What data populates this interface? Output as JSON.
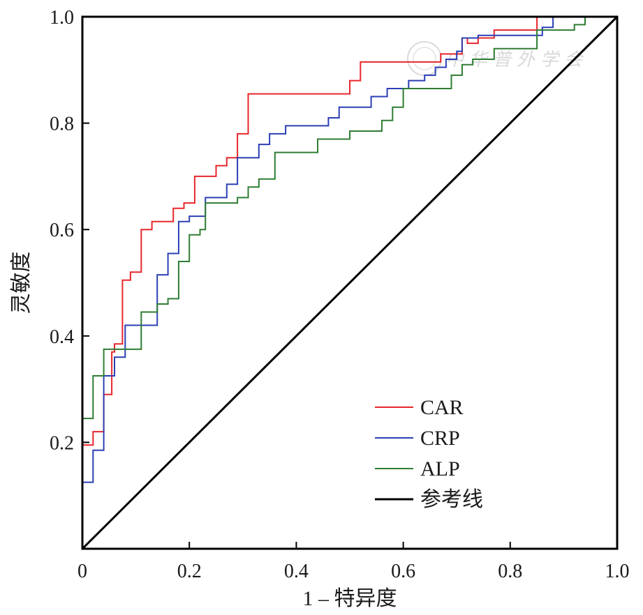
{
  "chart_data": {
    "type": "line",
    "xlabel": "1 – 特异度",
    "ylabel": "灵敏度",
    "xlim": [
      0,
      1
    ],
    "ylim": [
      0,
      1
    ],
    "x_ticks": [
      "0",
      "0.2",
      "0.4",
      "0.6",
      "0.8",
      "1.0"
    ],
    "x_tick_values": [
      0,
      0.2,
      0.4,
      0.6,
      0.8,
      1.0
    ],
    "y_ticks": [
      "0.2",
      "0.4",
      "0.6",
      "0.8",
      "1.0"
    ],
    "y_tick_values": [
      0.2,
      0.4,
      0.6,
      0.8,
      1.0
    ],
    "legend_position": "bottom-right",
    "watermark": "中华普外学会",
    "series": [
      {
        "name": "CAR",
        "color": "#e8262b",
        "points": [
          [
            0,
            0.195
          ],
          [
            0.02,
            0.195
          ],
          [
            0.02,
            0.22
          ],
          [
            0.04,
            0.22
          ],
          [
            0.04,
            0.29
          ],
          [
            0.055,
            0.29
          ],
          [
            0.055,
            0.37
          ],
          [
            0.06,
            0.37
          ],
          [
            0.06,
            0.385
          ],
          [
            0.075,
            0.385
          ],
          [
            0.075,
            0.505
          ],
          [
            0.09,
            0.505
          ],
          [
            0.09,
            0.52
          ],
          [
            0.11,
            0.52
          ],
          [
            0.11,
            0.6
          ],
          [
            0.13,
            0.6
          ],
          [
            0.13,
            0.615
          ],
          [
            0.17,
            0.615
          ],
          [
            0.17,
            0.64
          ],
          [
            0.19,
            0.64
          ],
          [
            0.19,
            0.65
          ],
          [
            0.21,
            0.65
          ],
          [
            0.21,
            0.7
          ],
          [
            0.25,
            0.7
          ],
          [
            0.25,
            0.72
          ],
          [
            0.27,
            0.72
          ],
          [
            0.27,
            0.735
          ],
          [
            0.29,
            0.735
          ],
          [
            0.29,
            0.78
          ],
          [
            0.31,
            0.78
          ],
          [
            0.31,
            0.855
          ],
          [
            0.5,
            0.855
          ],
          [
            0.5,
            0.88
          ],
          [
            0.52,
            0.88
          ],
          [
            0.52,
            0.915
          ],
          [
            0.67,
            0.915
          ],
          [
            0.67,
            0.93
          ],
          [
            0.71,
            0.93
          ],
          [
            0.71,
            0.96
          ],
          [
            0.72,
            0.96
          ],
          [
            0.72,
            0.95
          ],
          [
            0.74,
            0.95
          ],
          [
            0.74,
            0.96
          ],
          [
            0.77,
            0.96
          ],
          [
            0.77,
            0.975
          ],
          [
            0.85,
            0.975
          ],
          [
            0.85,
            1.0
          ],
          [
            1.0,
            1.0
          ]
        ]
      },
      {
        "name": "CRP",
        "color": "#2b3fb5",
        "points": [
          [
            0,
            0.125
          ],
          [
            0.02,
            0.125
          ],
          [
            0.02,
            0.185
          ],
          [
            0.04,
            0.185
          ],
          [
            0.04,
            0.325
          ],
          [
            0.06,
            0.325
          ],
          [
            0.06,
            0.36
          ],
          [
            0.08,
            0.36
          ],
          [
            0.08,
            0.42
          ],
          [
            0.14,
            0.42
          ],
          [
            0.14,
            0.515
          ],
          [
            0.16,
            0.515
          ],
          [
            0.16,
            0.555
          ],
          [
            0.18,
            0.555
          ],
          [
            0.18,
            0.615
          ],
          [
            0.2,
            0.615
          ],
          [
            0.2,
            0.625
          ],
          [
            0.23,
            0.625
          ],
          [
            0.23,
            0.66
          ],
          [
            0.27,
            0.66
          ],
          [
            0.27,
            0.685
          ],
          [
            0.29,
            0.685
          ],
          [
            0.29,
            0.735
          ],
          [
            0.33,
            0.735
          ],
          [
            0.33,
            0.76
          ],
          [
            0.35,
            0.76
          ],
          [
            0.35,
            0.78
          ],
          [
            0.38,
            0.78
          ],
          [
            0.38,
            0.795
          ],
          [
            0.46,
            0.795
          ],
          [
            0.46,
            0.81
          ],
          [
            0.48,
            0.81
          ],
          [
            0.48,
            0.83
          ],
          [
            0.54,
            0.83
          ],
          [
            0.54,
            0.85
          ],
          [
            0.57,
            0.85
          ],
          [
            0.57,
            0.865
          ],
          [
            0.61,
            0.865
          ],
          [
            0.61,
            0.88
          ],
          [
            0.64,
            0.88
          ],
          [
            0.64,
            0.89
          ],
          [
            0.66,
            0.89
          ],
          [
            0.66,
            0.905
          ],
          [
            0.68,
            0.905
          ],
          [
            0.68,
            0.92
          ],
          [
            0.7,
            0.92
          ],
          [
            0.7,
            0.935
          ],
          [
            0.71,
            0.935
          ],
          [
            0.71,
            0.96
          ],
          [
            0.74,
            0.96
          ],
          [
            0.74,
            0.965
          ],
          [
            0.86,
            0.965
          ],
          [
            0.86,
            0.98
          ],
          [
            0.88,
            0.98
          ],
          [
            0.88,
            1.0
          ],
          [
            1.0,
            1.0
          ]
        ]
      },
      {
        "name": "ALP",
        "color": "#2e7d32",
        "points": [
          [
            0,
            0.245
          ],
          [
            0.02,
            0.245
          ],
          [
            0.02,
            0.325
          ],
          [
            0.04,
            0.325
          ],
          [
            0.04,
            0.375
          ],
          [
            0.11,
            0.375
          ],
          [
            0.11,
            0.445
          ],
          [
            0.14,
            0.445
          ],
          [
            0.14,
            0.46
          ],
          [
            0.16,
            0.46
          ],
          [
            0.16,
            0.47
          ],
          [
            0.18,
            0.47
          ],
          [
            0.18,
            0.54
          ],
          [
            0.2,
            0.54
          ],
          [
            0.2,
            0.59
          ],
          [
            0.22,
            0.59
          ],
          [
            0.22,
            0.6
          ],
          [
            0.23,
            0.6
          ],
          [
            0.23,
            0.65
          ],
          [
            0.29,
            0.65
          ],
          [
            0.29,
            0.66
          ],
          [
            0.31,
            0.66
          ],
          [
            0.31,
            0.68
          ],
          [
            0.33,
            0.68
          ],
          [
            0.33,
            0.695
          ],
          [
            0.36,
            0.695
          ],
          [
            0.36,
            0.745
          ],
          [
            0.44,
            0.745
          ],
          [
            0.44,
            0.77
          ],
          [
            0.5,
            0.77
          ],
          [
            0.5,
            0.785
          ],
          [
            0.56,
            0.785
          ],
          [
            0.56,
            0.805
          ],
          [
            0.58,
            0.805
          ],
          [
            0.58,
            0.83
          ],
          [
            0.6,
            0.83
          ],
          [
            0.6,
            0.865
          ],
          [
            0.69,
            0.865
          ],
          [
            0.69,
            0.89
          ],
          [
            0.71,
            0.89
          ],
          [
            0.71,
            0.91
          ],
          [
            0.73,
            0.91
          ],
          [
            0.73,
            0.92
          ],
          [
            0.77,
            0.92
          ],
          [
            0.77,
            0.94
          ],
          [
            0.85,
            0.94
          ],
          [
            0.85,
            0.975
          ],
          [
            0.92,
            0.975
          ],
          [
            0.92,
            0.985
          ],
          [
            0.94,
            0.985
          ],
          [
            0.94,
            1.0
          ],
          [
            1.0,
            1.0
          ]
        ]
      },
      {
        "name": "参考线",
        "color": "#000000",
        "points": [
          [
            0,
            0
          ],
          [
            1,
            1
          ]
        ]
      }
    ]
  }
}
